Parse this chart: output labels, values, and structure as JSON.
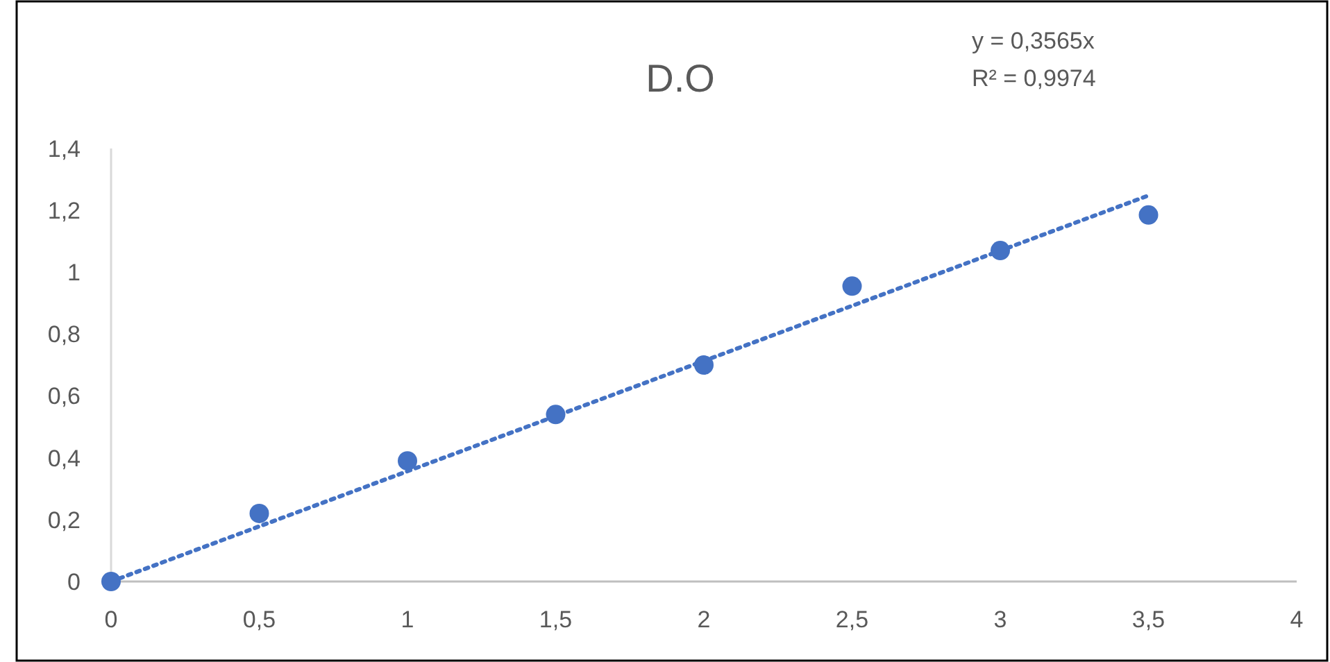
{
  "chart_data": {
    "type": "scatter",
    "title": "D.O",
    "x": [
      0,
      0.5,
      1,
      1.5,
      2,
      2.5,
      3,
      3.5
    ],
    "series": [
      {
        "color": "#4472c4",
        "values": [
          0,
          0.22,
          0.39,
          0.54,
          0.7,
          0.955,
          1.07,
          1.185
        ]
      },
      {
        "type": "line",
        "color": "#4472c4",
        "x": [
          0,
          3.5
        ],
        "values": [
          0,
          1.248
        ],
        "line_style": "dotted",
        "marker": "none"
      }
    ],
    "marker": "circle",
    "xlim": [
      0,
      4
    ],
    "ylim": [
      0,
      1.4
    ],
    "xticks": [
      0,
      {
        "value": 0.5,
        "label": "0,5"
      },
      1,
      {
        "value": 1.5,
        "label": "1,5"
      },
      2,
      {
        "value": 2.5,
        "label": "2,5"
      },
      3,
      {
        "value": 3.5,
        "label": "3,5"
      },
      4
    ],
    "yticks": [
      0,
      {
        "value": 0.2,
        "label": "0,2"
      },
      {
        "value": 0.4,
        "label": "0,4"
      },
      {
        "value": 0.6,
        "label": "0,6"
      },
      {
        "value": 0.8,
        "label": "0,8"
      },
      1,
      {
        "value": 1.2,
        "label": "1,2"
      },
      {
        "value": 1.4,
        "label": "1,4"
      }
    ],
    "grid": false,
    "annotations": [
      "y = 0,3565x",
      "R² = 0,9974"
    ]
  }
}
